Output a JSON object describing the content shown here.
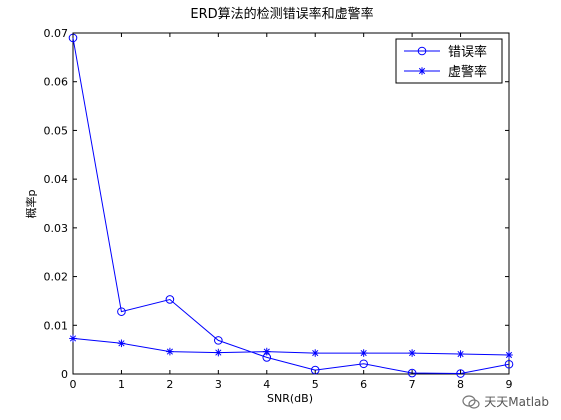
{
  "chart_data": {
    "type": "line",
    "title": "ERD算法的检测错误率和虚警率",
    "xlabel": "SNR(dB)",
    "ylabel": "概率p",
    "xlim": [
      0,
      9
    ],
    "ylim": [
      0,
      0.07
    ],
    "xticks": [
      "0",
      "1",
      "2",
      "3",
      "4",
      "5",
      "6",
      "7",
      "8",
      "9"
    ],
    "yticks": [
      "0",
      "0.01",
      "0.02",
      "0.03",
      "0.04",
      "0.05",
      "0.06",
      "0.07"
    ],
    "x": [
      0,
      1,
      2,
      3,
      4,
      5,
      6,
      7,
      8,
      9
    ],
    "series": [
      {
        "name": "错误率",
        "marker": "circle",
        "color": "#0000ff",
        "values": [
          0.069,
          0.0128,
          0.0153,
          0.0069,
          0.0034,
          0.0008,
          0.0021,
          0.0002,
          0.0001,
          0.002
        ]
      },
      {
        "name": "虚警率",
        "marker": "asterisk",
        "color": "#0000ff",
        "values": [
          0.0073,
          0.0063,
          0.0046,
          0.0044,
          0.0046,
          0.0043,
          0.0043,
          0.0043,
          0.0041,
          0.0039
        ]
      }
    ],
    "grid": false,
    "legend_position": "top-right"
  },
  "watermark": {
    "text": "天天Matlab"
  }
}
